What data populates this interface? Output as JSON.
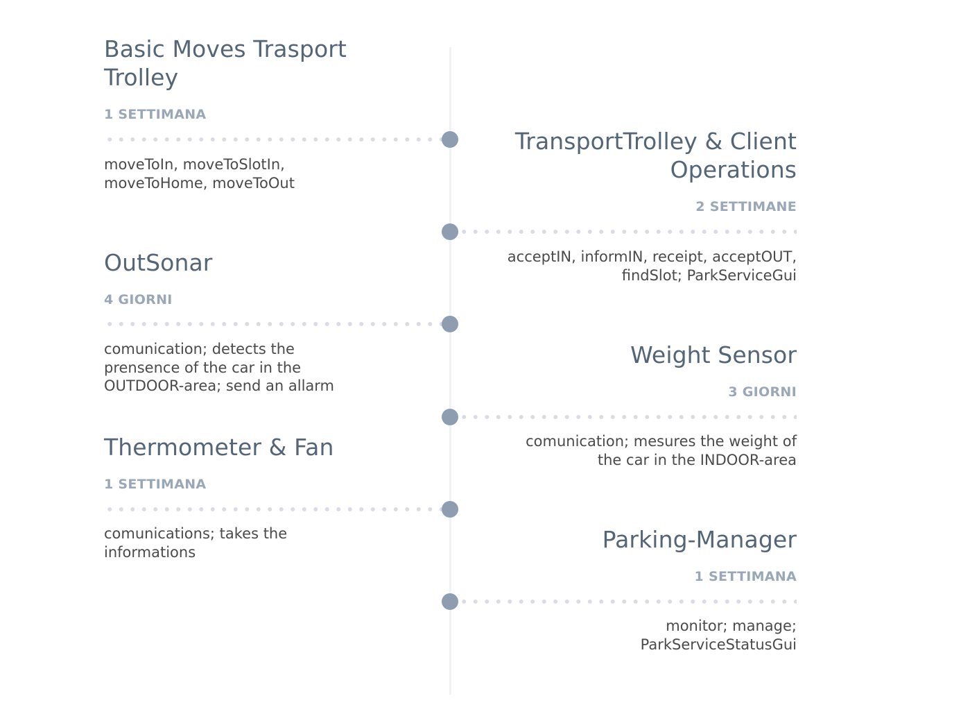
{
  "timeline": {
    "entries": [
      {
        "side": "left",
        "title": "Basic Moves Trasport Trolley",
        "duration": "1 SETTIMANA",
        "description": "moveToIn, moveToSlotIn, moveToHome, moveToOut"
      },
      {
        "side": "right",
        "title": "TransportTrolley & Client Operations",
        "duration": "2 SETTIMANE",
        "description": "acceptIN, informIN, receipt, acceptOUT, findSlot; ParkServiceGui"
      },
      {
        "side": "left",
        "title": "OutSonar",
        "duration": "4 GIORNI",
        "description": "comunication; detects the prensence of the car in the OUTDOOR-area; send an allarm"
      },
      {
        "side": "right",
        "title": "Weight Sensor",
        "duration": "3 GIORNI",
        "description": "comunication; mesures the weight of the car in the INDOOR-area"
      },
      {
        "side": "left",
        "title": "Thermometer & Fan",
        "duration": "1 SETTIMANA",
        "description": "comunications; takes the informations"
      },
      {
        "side": "right",
        "title": "Parking-Manager",
        "duration": "1 SETTIMANA",
        "description": "monitor; manage; ParkServiceStatusGui"
      }
    ]
  },
  "colors": {
    "title": "#536577",
    "duration": "#9aa7b6",
    "node": "#8f9db0",
    "dots": "#d9dde3",
    "axis": "#f1f2f4",
    "text": "#4a4a4a"
  }
}
